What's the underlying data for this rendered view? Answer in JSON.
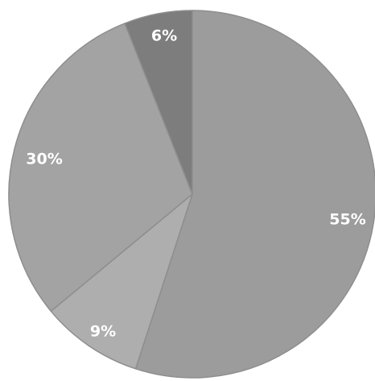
{
  "chart_data": {
    "type": "pie",
    "start": "top",
    "direction": "clockwise",
    "slices": [
      {
        "label": "55%",
        "value": 55,
        "color": "#9c9c9c"
      },
      {
        "label": "9%",
        "value": 9,
        "color": "#aeaeae"
      },
      {
        "label": "30%",
        "value": 30,
        "color": "#a3a3a3"
      },
      {
        "label": "6%",
        "value": 6,
        "color": "#7d7d7d"
      }
    ],
    "legend": "none",
    "title": ""
  }
}
